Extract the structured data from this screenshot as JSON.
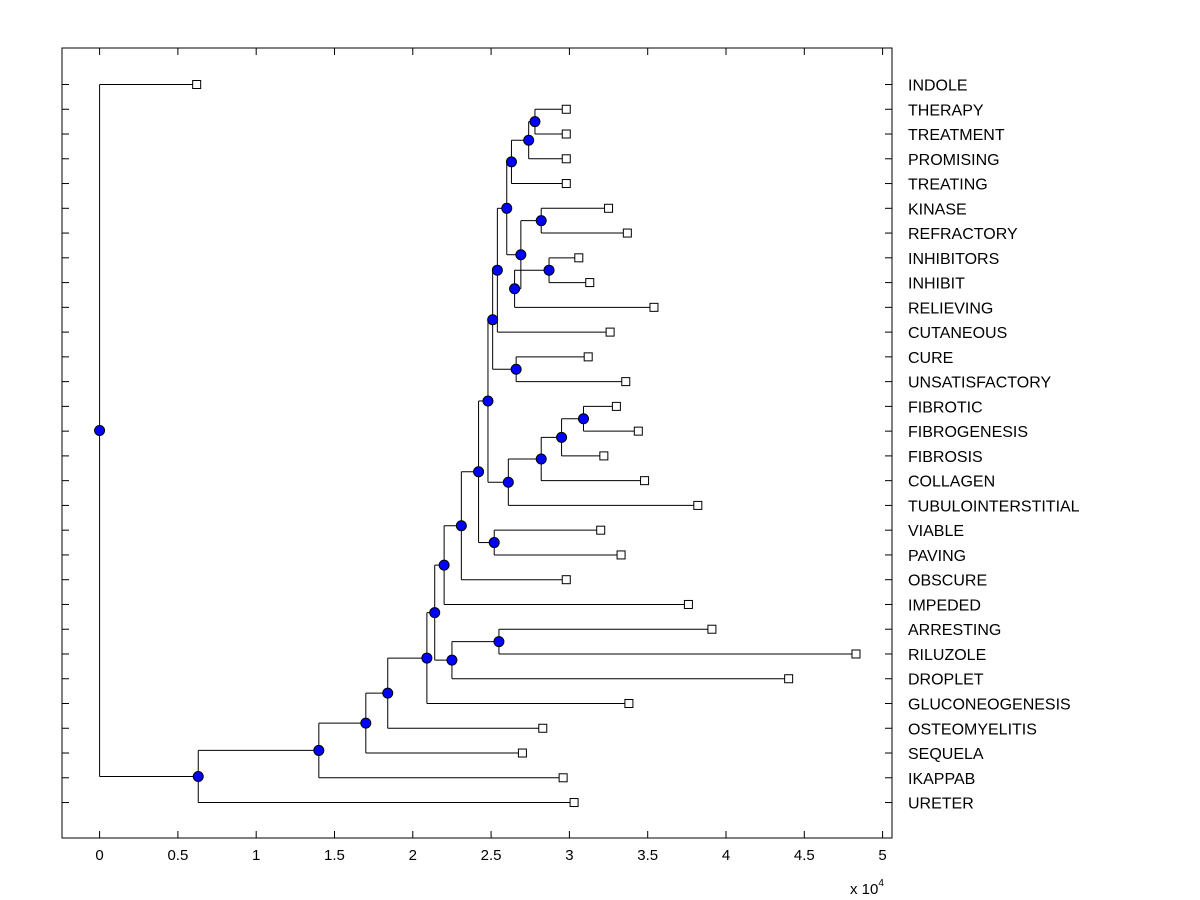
{
  "chart_data": {
    "type": "dendrogram",
    "x_ticks": [
      "0",
      "0.5",
      "1",
      "1.5",
      "2",
      "2.5",
      "3",
      "3.5",
      "4",
      "4.5",
      "5"
    ],
    "x_tick_values": [
      0,
      0.5,
      1,
      1.5,
      2,
      2.5,
      3,
      3.5,
      4,
      4.5,
      5
    ],
    "x_multiplier": "x 10",
    "x_multiplier_exp": "4",
    "xlim": [
      -0.24,
      5.06
    ],
    "leaves": [
      {
        "label": "INDOLE",
        "x": 0.62
      },
      {
        "label": "THERAPY",
        "x": 2.98
      },
      {
        "label": "TREATMENT",
        "x": 2.98
      },
      {
        "label": "PROMISING",
        "x": 2.98
      },
      {
        "label": "TREATING",
        "x": 2.98
      },
      {
        "label": "KINASE",
        "x": 3.25
      },
      {
        "label": "REFRACTORY",
        "x": 3.37
      },
      {
        "label": "INHIBITORS",
        "x": 3.06
      },
      {
        "label": "INHIBIT",
        "x": 3.13
      },
      {
        "label": "RELIEVING",
        "x": 3.54
      },
      {
        "label": "CUTANEOUS",
        "x": 3.26
      },
      {
        "label": "CURE",
        "x": 3.12
      },
      {
        "label": "UNSATISFACTORY",
        "x": 3.36
      },
      {
        "label": "FIBROTIC",
        "x": 3.3
      },
      {
        "label": "FIBROGENESIS",
        "x": 3.44
      },
      {
        "label": "FIBROSIS",
        "x": 3.22
      },
      {
        "label": "COLLAGEN",
        "x": 3.48
      },
      {
        "label": "TUBULOINTERSTITIAL",
        "x": 3.82
      },
      {
        "label": "VIABLE",
        "x": 3.2
      },
      {
        "label": "PAVING",
        "x": 3.33
      },
      {
        "label": "OBSCURE",
        "x": 2.98
      },
      {
        "label": "IMPEDED",
        "x": 3.76
      },
      {
        "label": "ARRESTING",
        "x": 3.91
      },
      {
        "label": "RILUZOLE",
        "x": 4.83
      },
      {
        "label": "DROPLET",
        "x": 4.4
      },
      {
        "label": "GLUCONEOGENESIS",
        "x": 3.38
      },
      {
        "label": "OSTEOMYELITIS",
        "x": 2.83
      },
      {
        "label": "SEQUELA",
        "x": 2.7
      },
      {
        "label": "IKAPPAB",
        "x": 2.96
      },
      {
        "label": "URETER",
        "x": 3.03
      }
    ],
    "merges": [
      {
        "id": "a",
        "x": 2.78,
        "children": [
          1,
          2
        ]
      },
      {
        "id": "b",
        "x": 2.74,
        "children": [
          "a",
          3
        ]
      },
      {
        "id": "c",
        "x": 2.63,
        "children": [
          "b",
          4
        ]
      },
      {
        "id": "d",
        "x": 2.82,
        "children": [
          5,
          6
        ]
      },
      {
        "id": "e",
        "x": 2.87,
        "children": [
          7,
          8
        ]
      },
      {
        "id": "f",
        "x": 2.65,
        "children": [
          "e",
          9
        ]
      },
      {
        "id": "g",
        "x": 2.69,
        "children": [
          "d",
          "f"
        ]
      },
      {
        "id": "h",
        "x": 2.6,
        "children": [
          "c",
          "g"
        ]
      },
      {
        "id": "i",
        "x": 2.54,
        "children": [
          "h",
          10
        ]
      },
      {
        "id": "j",
        "x": 2.66,
        "children": [
          11,
          12
        ]
      },
      {
        "id": "k",
        "x": 2.51,
        "children": [
          "i",
          "j"
        ]
      },
      {
        "id": "l",
        "x": 3.09,
        "children": [
          13,
          14
        ]
      },
      {
        "id": "m",
        "x": 2.95,
        "children": [
          "l",
          15
        ]
      },
      {
        "id": "n",
        "x": 2.82,
        "children": [
          "m",
          16
        ]
      },
      {
        "id": "o",
        "x": 2.61,
        "children": [
          "n",
          17
        ]
      },
      {
        "id": "p",
        "x": 2.48,
        "children": [
          "k",
          "o"
        ]
      },
      {
        "id": "q",
        "x": 2.52,
        "children": [
          18,
          19
        ]
      },
      {
        "id": "r",
        "x": 2.42,
        "children": [
          "p",
          "q"
        ]
      },
      {
        "id": "s",
        "x": 2.31,
        "children": [
          "r",
          20
        ]
      },
      {
        "id": "t",
        "x": 2.2,
        "children": [
          "s",
          21
        ]
      },
      {
        "id": "u",
        "x": 2.55,
        "children": [
          22,
          23
        ]
      },
      {
        "id": "v",
        "x": 2.25,
        "children": [
          "u",
          24
        ]
      },
      {
        "id": "w",
        "x": 2.14,
        "children": [
          "t",
          "v"
        ]
      },
      {
        "id": "x",
        "x": 2.09,
        "children": [
          "w",
          25
        ]
      },
      {
        "id": "y",
        "x": 1.84,
        "children": [
          "x",
          26
        ]
      },
      {
        "id": "z",
        "x": 1.7,
        "children": [
          "y",
          27
        ]
      },
      {
        "id": "aa",
        "x": 1.4,
        "children": [
          "z",
          28
        ]
      },
      {
        "id": "ab",
        "x": 0.63,
        "children": [
          "aa",
          29
        ]
      },
      {
        "id": "root",
        "x": 0.0,
        "children": [
          0,
          "ab"
        ]
      }
    ],
    "colors": {
      "node_fill": "#0000ff",
      "line": "#000000",
      "leaf_marker": "#ffffff"
    }
  }
}
